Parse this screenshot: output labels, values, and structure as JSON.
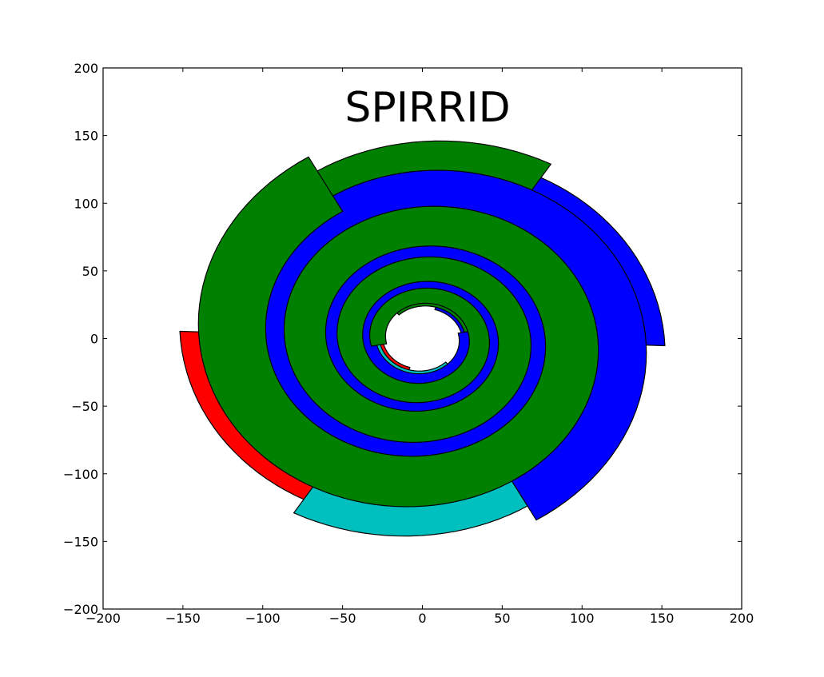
{
  "chart_data": {
    "type": "area",
    "title": "SPIRRID",
    "xlabel": "",
    "ylabel": "",
    "xlim": [
      -200,
      200
    ],
    "ylim": [
      -200,
      200
    ],
    "xticks": [
      -200,
      -150,
      -100,
      -50,
      0,
      50,
      100,
      150,
      200
    ],
    "yticks": [
      -200,
      -150,
      -100,
      -50,
      0,
      50,
      100,
      150,
      200
    ],
    "xtick_labels": [
      "−200",
      "−150",
      "−100",
      "−50",
      "0",
      "50",
      "100",
      "150",
      "200"
    ],
    "ytick_labels": [
      "−200",
      "−150",
      "−100",
      "−50",
      "0",
      "50",
      "100",
      "150",
      "200"
    ],
    "grid": false,
    "spiral": {
      "arms": 6,
      "arm_colors": [
        "#0000ff",
        "#008000",
        "#ff0000",
        "#00bfbf",
        "#0000ff",
        "#008000"
      ],
      "arm_start_angles_deg": [
        -2,
        58,
        178,
        238,
        298,
        118
      ],
      "outer_radius": 152,
      "turns": 3.2,
      "growth_per_turn": 1.62,
      "width_fraction": 0.3,
      "edge_color": "#000000"
    }
  }
}
